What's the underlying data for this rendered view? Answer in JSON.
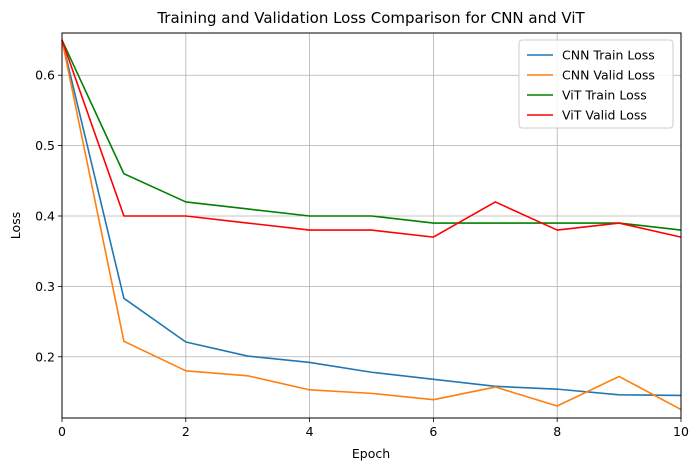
{
  "chart_data": {
    "type": "line",
    "title": "Training and Validation Loss Comparison for CNN and ViT",
    "xlabel": "Epoch",
    "ylabel": "Loss",
    "xlim": [
      0,
      10
    ],
    "ylim": [
      0.113,
      0.66
    ],
    "xticks": [
      0,
      2,
      4,
      6,
      8,
      10
    ],
    "yticks": [
      0.2,
      0.3,
      0.4,
      0.5,
      0.6
    ],
    "grid": true,
    "legend_position": "top-right",
    "x": [
      0,
      1,
      2,
      3,
      4,
      5,
      6,
      7,
      8,
      9,
      10
    ],
    "series": [
      {
        "name": "CNN Train Loss",
        "color": "#1f77b4",
        "values": [
          0.65,
          0.283,
          0.221,
          0.201,
          0.192,
          0.178,
          0.168,
          0.158,
          0.154,
          0.146,
          0.145
        ]
      },
      {
        "name": "CNN Valid Loss",
        "color": "#ff7f0e",
        "values": [
          0.65,
          0.222,
          0.18,
          0.173,
          0.153,
          0.148,
          0.139,
          0.157,
          0.13,
          0.172,
          0.125
        ]
      },
      {
        "name": "ViT Train Loss",
        "color": "#008000",
        "values": [
          0.65,
          0.46,
          0.42,
          0.41,
          0.4,
          0.4,
          0.39,
          0.39,
          0.39,
          0.39,
          0.38
        ]
      },
      {
        "name": "ViT Valid Loss",
        "color": "#ff0000",
        "values": [
          0.65,
          0.4,
          0.4,
          0.39,
          0.38,
          0.38,
          0.37,
          0.42,
          0.38,
          0.39,
          0.37
        ]
      }
    ]
  }
}
